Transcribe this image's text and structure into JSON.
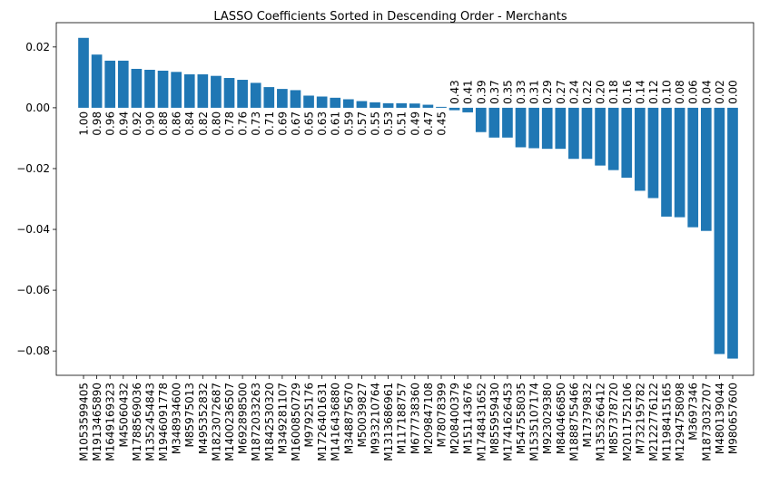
{
  "chart_data": {
    "type": "bar",
    "title": "LASSO Coefficients Sorted in Descending Order - Merchants",
    "xlabel": "",
    "ylabel": "",
    "ylim": [
      -0.088,
      0.028
    ],
    "yticks": [
      "−0.08",
      "−0.06",
      "−0.04",
      "−0.02",
      "0.00",
      "0.02"
    ],
    "ytick_values": [
      -0.08,
      -0.06,
      -0.04,
      -0.02,
      0.0,
      0.02
    ],
    "bar_color": "#1f77b4",
    "grid": false,
    "categories": [
      "M1053599405",
      "M1913465890",
      "M1649169323",
      "M45060432",
      "M1788569036",
      "M1352454843",
      "M1946091778",
      "M348934600",
      "M85975013",
      "M495352832",
      "M1823072687",
      "M1400236507",
      "M692898500",
      "M1872033263",
      "M1842530320",
      "M349281107",
      "M1600850729",
      "M97925176",
      "M1726401631",
      "M1416436880",
      "M348875670",
      "M50039827",
      "M933210764",
      "M1313686961",
      "M117188757",
      "M677738360",
      "M209847108",
      "M78078399",
      "M208400379",
      "M151143676",
      "M1748431652",
      "M855959430",
      "M1741626453",
      "M547558035",
      "M1535107174",
      "M923029380",
      "M840466850",
      "M1888755466",
      "M17379832",
      "M1353266412",
      "M857378720",
      "M2011752106",
      "M732195782",
      "M2122776122",
      "M1198415165",
      "M1294758098",
      "M3697346",
      "M1873032707",
      "M480139044",
      "M980657600"
    ],
    "values": [
      0.023,
      0.0175,
      0.0155,
      0.0155,
      0.0128,
      0.0125,
      0.0122,
      0.0118,
      0.011,
      0.011,
      0.0105,
      0.0098,
      0.0092,
      0.0082,
      0.0068,
      0.0062,
      0.0058,
      0.004,
      0.0037,
      0.0033,
      0.0028,
      0.0022,
      0.0018,
      0.0015,
      0.0015,
      0.0014,
      0.001,
      0.0003,
      -0.0008,
      -0.0015,
      -0.008,
      -0.0098,
      -0.0098,
      -0.013,
      -0.0133,
      -0.0135,
      -0.0135,
      -0.0168,
      -0.0168,
      -0.019,
      -0.0205,
      -0.023,
      -0.0273,
      -0.0297,
      -0.0358,
      -0.036,
      -0.0393,
      -0.0405,
      -0.081,
      -0.0825
    ],
    "data_labels": [
      "1.00",
      "0.98",
      "0.96",
      "0.94",
      "0.92",
      "0.90",
      "0.88",
      "0.86",
      "0.84",
      "0.82",
      "0.80",
      "0.78",
      "0.76",
      "0.73",
      "0.71",
      "0.69",
      "0.67",
      "0.65",
      "0.63",
      "0.61",
      "0.59",
      "0.57",
      "0.55",
      "0.53",
      "0.51",
      "0.49",
      "0.47",
      "0.45",
      "0.43",
      "0.41",
      "0.39",
      "0.37",
      "0.35",
      "0.33",
      "0.31",
      "0.29",
      "0.27",
      "0.24",
      "0.22",
      "0.20",
      "0.18",
      "0.16",
      "0.14",
      "0.12",
      "0.10",
      "0.08",
      "0.06",
      "0.04",
      "0.02",
      "0.00"
    ]
  }
}
